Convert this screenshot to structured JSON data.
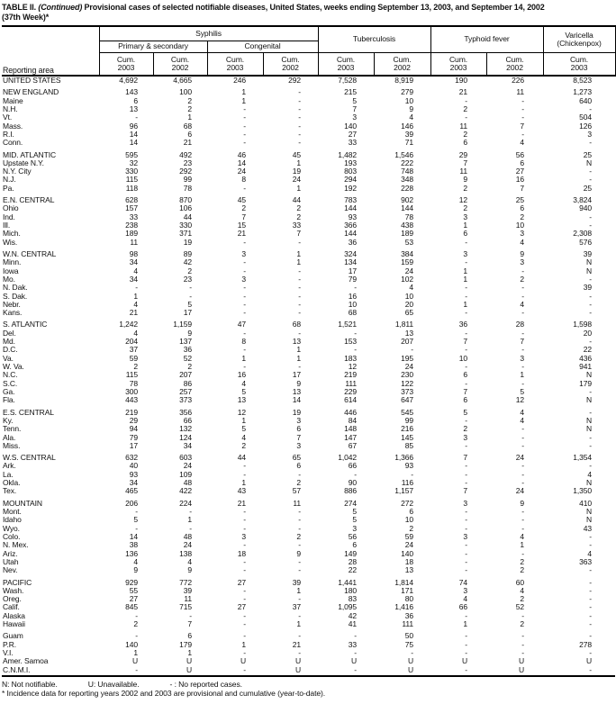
{
  "title": {
    "part1": "TABLE II. ",
    "continued": "(Continued)",
    "part2": " Provisional cases of selected notifiable diseases, United States, weeks ending September 13, 2003, and September 14, 2002",
    "line2": "(37th Week)*"
  },
  "header": {
    "reporting_area": "Reporting area",
    "syphilis": "Syphilis",
    "primary_secondary": "Primary & secondary",
    "congenital": "Congenital",
    "tuberculosis": "Tuberculosis",
    "typhoid": "Typhoid fever",
    "varicella_line1": "Varicella",
    "varicella_line2": "(Chickenpox)",
    "cum": "Cum.",
    "years": [
      "2003",
      "2002",
      "2003",
      "2002",
      "2003",
      "2002",
      "2003",
      "2002",
      "2003"
    ]
  },
  "table": {
    "rows": [
      {
        "type": "total",
        "area": "UNITED STATES",
        "v": [
          "4,692",
          "4,665",
          "246",
          "292",
          "7,528",
          "8,919",
          "190",
          "226",
          "8,523"
        ]
      },
      {
        "gap": true
      },
      {
        "type": "region",
        "area": "NEW ENGLAND",
        "v": [
          "143",
          "100",
          "1",
          "-",
          "215",
          "279",
          "21",
          "11",
          "1,273"
        ]
      },
      {
        "type": "state",
        "area": "Maine",
        "v": [
          "6",
          "2",
          "1",
          "-",
          "5",
          "10",
          "-",
          "-",
          "640"
        ]
      },
      {
        "type": "state",
        "area": "N.H.",
        "v": [
          "13",
          "2",
          "-",
          "-",
          "7",
          "9",
          "2",
          "-",
          "-"
        ]
      },
      {
        "type": "state",
        "area": "Vt.",
        "v": [
          "-",
          "1",
          "-",
          "-",
          "3",
          "4",
          "-",
          "-",
          "504"
        ]
      },
      {
        "type": "state",
        "area": "Mass.",
        "v": [
          "96",
          "68",
          "-",
          "-",
          "140",
          "146",
          "11",
          "7",
          "126"
        ]
      },
      {
        "type": "state",
        "area": "R.I.",
        "v": [
          "14",
          "6",
          "-",
          "-",
          "27",
          "39",
          "2",
          "-",
          "3"
        ]
      },
      {
        "type": "state",
        "area": "Conn.",
        "v": [
          "14",
          "21",
          "-",
          "-",
          "33",
          "71",
          "6",
          "4",
          "-"
        ]
      },
      {
        "gap": true
      },
      {
        "type": "region",
        "area": "MID. ATLANTIC",
        "v": [
          "595",
          "492",
          "46",
          "45",
          "1,482",
          "1,546",
          "29",
          "56",
          "25"
        ]
      },
      {
        "type": "state",
        "area": "Upstate N.Y.",
        "v": [
          "32",
          "23",
          "14",
          "1",
          "193",
          "222",
          "7",
          "6",
          "N"
        ]
      },
      {
        "type": "state",
        "area": "N.Y. City",
        "v": [
          "330",
          "292",
          "24",
          "19",
          "803",
          "748",
          "11",
          "27",
          "-"
        ]
      },
      {
        "type": "state",
        "area": "N.J.",
        "v": [
          "115",
          "99",
          "8",
          "24",
          "294",
          "348",
          "9",
          "16",
          "-"
        ]
      },
      {
        "type": "state",
        "area": "Pa.",
        "v": [
          "118",
          "78",
          "-",
          "1",
          "192",
          "228",
          "2",
          "7",
          "25"
        ]
      },
      {
        "gap": true
      },
      {
        "type": "region",
        "area": "E.N. CENTRAL",
        "v": [
          "628",
          "870",
          "45",
          "44",
          "783",
          "902",
          "12",
          "25",
          "3,824"
        ]
      },
      {
        "type": "state",
        "area": "Ohio",
        "v": [
          "157",
          "106",
          "2",
          "2",
          "144",
          "144",
          "2",
          "6",
          "940"
        ]
      },
      {
        "type": "state",
        "area": "Ind.",
        "v": [
          "33",
          "44",
          "7",
          "2",
          "93",
          "78",
          "3",
          "2",
          "-"
        ]
      },
      {
        "type": "state",
        "area": "Ill.",
        "v": [
          "238",
          "330",
          "15",
          "33",
          "366",
          "438",
          "1",
          "10",
          "-"
        ]
      },
      {
        "type": "state",
        "area": "Mich.",
        "v": [
          "189",
          "371",
          "21",
          "7",
          "144",
          "189",
          "6",
          "3",
          "2,308"
        ]
      },
      {
        "type": "state",
        "area": "Wis.",
        "v": [
          "11",
          "19",
          "-",
          "-",
          "36",
          "53",
          "-",
          "4",
          "576"
        ]
      },
      {
        "gap": true
      },
      {
        "type": "region",
        "area": "W.N. CENTRAL",
        "v": [
          "98",
          "89",
          "3",
          "1",
          "324",
          "384",
          "3",
          "9",
          "39"
        ]
      },
      {
        "type": "state",
        "area": "Minn.",
        "v": [
          "34",
          "42",
          "-",
          "1",
          "134",
          "159",
          "-",
          "3",
          "N"
        ]
      },
      {
        "type": "state",
        "area": "Iowa",
        "v": [
          "4",
          "2",
          "-",
          "-",
          "17",
          "24",
          "1",
          "-",
          "N"
        ]
      },
      {
        "type": "state",
        "area": "Mo.",
        "v": [
          "34",
          "23",
          "3",
          "-",
          "79",
          "102",
          "1",
          "2",
          "-"
        ]
      },
      {
        "type": "state",
        "area": "N. Dak.",
        "v": [
          "-",
          "-",
          "-",
          "-",
          "-",
          "4",
          "-",
          "-",
          "39"
        ]
      },
      {
        "type": "state",
        "area": "S. Dak.",
        "v": [
          "1",
          "-",
          "-",
          "-",
          "16",
          "10",
          "-",
          "-",
          "-"
        ]
      },
      {
        "type": "state",
        "area": "Nebr.",
        "v": [
          "4",
          "5",
          "-",
          "-",
          "10",
          "20",
          "1",
          "4",
          "-"
        ]
      },
      {
        "type": "state",
        "area": "Kans.",
        "v": [
          "21",
          "17",
          "-",
          "-",
          "68",
          "65",
          "-",
          "-",
          "-"
        ]
      },
      {
        "gap": true
      },
      {
        "type": "region",
        "area": "S. ATLANTIC",
        "v": [
          "1,242",
          "1,159",
          "47",
          "68",
          "1,521",
          "1,811",
          "36",
          "28",
          "1,598"
        ]
      },
      {
        "type": "state",
        "area": "Del.",
        "v": [
          "4",
          "9",
          "-",
          "-",
          "-",
          "13",
          "-",
          "-",
          "20"
        ]
      },
      {
        "type": "state",
        "area": "Md.",
        "v": [
          "204",
          "137",
          "8",
          "13",
          "153",
          "207",
          "7",
          "7",
          "-"
        ]
      },
      {
        "type": "state",
        "area": "D.C.",
        "v": [
          "37",
          "36",
          "-",
          "1",
          "-",
          "-",
          "-",
          "-",
          "22"
        ]
      },
      {
        "type": "state",
        "area": "Va.",
        "v": [
          "59",
          "52",
          "1",
          "1",
          "183",
          "195",
          "10",
          "3",
          "436"
        ]
      },
      {
        "type": "state",
        "area": "W. Va.",
        "v": [
          "2",
          "2",
          "-",
          "-",
          "12",
          "24",
          "-",
          "-",
          "941"
        ]
      },
      {
        "type": "state",
        "area": "N.C.",
        "v": [
          "115",
          "207",
          "16",
          "17",
          "219",
          "230",
          "6",
          "1",
          "N"
        ]
      },
      {
        "type": "state",
        "area": "S.C.",
        "v": [
          "78",
          "86",
          "4",
          "9",
          "111",
          "122",
          "-",
          "-",
          "179"
        ]
      },
      {
        "type": "state",
        "area": "Ga.",
        "v": [
          "300",
          "257",
          "5",
          "13",
          "229",
          "373",
          "7",
          "5",
          "-"
        ]
      },
      {
        "type": "state",
        "area": "Fla.",
        "v": [
          "443",
          "373",
          "13",
          "14",
          "614",
          "647",
          "6",
          "12",
          "N"
        ]
      },
      {
        "gap": true
      },
      {
        "type": "region",
        "area": "E.S. CENTRAL",
        "v": [
          "219",
          "356",
          "12",
          "19",
          "446",
          "545",
          "5",
          "4",
          "-"
        ]
      },
      {
        "type": "state",
        "area": "Ky.",
        "v": [
          "29",
          "66",
          "1",
          "3",
          "84",
          "99",
          "-",
          "4",
          "N"
        ]
      },
      {
        "type": "state",
        "area": "Tenn.",
        "v": [
          "94",
          "132",
          "5",
          "6",
          "148",
          "216",
          "2",
          "-",
          "N"
        ]
      },
      {
        "type": "state",
        "area": "Ala.",
        "v": [
          "79",
          "124",
          "4",
          "7",
          "147",
          "145",
          "3",
          "-",
          "-"
        ]
      },
      {
        "type": "state",
        "area": "Miss.",
        "v": [
          "17",
          "34",
          "2",
          "3",
          "67",
          "85",
          "-",
          "-",
          "-"
        ]
      },
      {
        "gap": true
      },
      {
        "type": "region",
        "area": "W.S. CENTRAL",
        "v": [
          "632",
          "603",
          "44",
          "65",
          "1,042",
          "1,366",
          "7",
          "24",
          "1,354"
        ]
      },
      {
        "type": "state",
        "area": "Ark.",
        "v": [
          "40",
          "24",
          "-",
          "6",
          "66",
          "93",
          "-",
          "-",
          "-"
        ]
      },
      {
        "type": "state",
        "area": "La.",
        "v": [
          "93",
          "109",
          "-",
          "-",
          "-",
          "-",
          "-",
          "-",
          "4"
        ]
      },
      {
        "type": "state",
        "area": "Okla.",
        "v": [
          "34",
          "48",
          "1",
          "2",
          "90",
          "116",
          "-",
          "-",
          "N"
        ]
      },
      {
        "type": "state",
        "area": "Tex.",
        "v": [
          "465",
          "422",
          "43",
          "57",
          "886",
          "1,157",
          "7",
          "24",
          "1,350"
        ]
      },
      {
        "gap": true
      },
      {
        "type": "region",
        "area": "MOUNTAIN",
        "v": [
          "206",
          "224",
          "21",
          "11",
          "274",
          "272",
          "3",
          "9",
          "410"
        ]
      },
      {
        "type": "state",
        "area": "Mont.",
        "v": [
          "-",
          "-",
          "-",
          "-",
          "5",
          "6",
          "-",
          "-",
          "N"
        ]
      },
      {
        "type": "state",
        "area": "Idaho",
        "v": [
          "5",
          "1",
          "-",
          "-",
          "5",
          "10",
          "-",
          "-",
          "N"
        ]
      },
      {
        "type": "state",
        "area": "Wyo.",
        "v": [
          "-",
          "-",
          "-",
          "-",
          "3",
          "2",
          "-",
          "-",
          "43"
        ]
      },
      {
        "type": "state",
        "area": "Colo.",
        "v": [
          "14",
          "48",
          "3",
          "2",
          "56",
          "59",
          "3",
          "4",
          "-"
        ]
      },
      {
        "type": "state",
        "area": "N. Mex.",
        "v": [
          "38",
          "24",
          "-",
          "-",
          "6",
          "24",
          "-",
          "1",
          "-"
        ]
      },
      {
        "type": "state",
        "area": "Ariz.",
        "v": [
          "136",
          "138",
          "18",
          "9",
          "149",
          "140",
          "-",
          "-",
          "4"
        ]
      },
      {
        "type": "state",
        "area": "Utah",
        "v": [
          "4",
          "4",
          "-",
          "-",
          "28",
          "18",
          "-",
          "2",
          "363"
        ]
      },
      {
        "type": "state",
        "area": "Nev.",
        "v": [
          "9",
          "9",
          "-",
          "-",
          "22",
          "13",
          "-",
          "2",
          "-"
        ]
      },
      {
        "gap": true
      },
      {
        "type": "region",
        "area": "PACIFIC",
        "v": [
          "929",
          "772",
          "27",
          "39",
          "1,441",
          "1,814",
          "74",
          "60",
          "-"
        ]
      },
      {
        "type": "state",
        "area": "Wash.",
        "v": [
          "55",
          "39",
          "-",
          "1",
          "180",
          "171",
          "3",
          "4",
          "-"
        ]
      },
      {
        "type": "state",
        "area": "Oreg.",
        "v": [
          "27",
          "11",
          "-",
          "-",
          "83",
          "80",
          "4",
          "2",
          "-"
        ]
      },
      {
        "type": "state",
        "area": "Calif.",
        "v": [
          "845",
          "715",
          "27",
          "37",
          "1,095",
          "1,416",
          "66",
          "52",
          "-"
        ]
      },
      {
        "type": "state",
        "area": "Alaska",
        "v": [
          "-",
          "-",
          "-",
          "-",
          "42",
          "36",
          "-",
          "-",
          "-"
        ]
      },
      {
        "type": "state",
        "area": "Hawaii",
        "v": [
          "2",
          "7",
          "-",
          "1",
          "41",
          "111",
          "1",
          "2",
          "-"
        ]
      },
      {
        "gap": true
      },
      {
        "type": "territory",
        "area": "Guam",
        "v": [
          "-",
          "6",
          "-",
          "-",
          "-",
          "50",
          "-",
          "-",
          "-"
        ]
      },
      {
        "type": "territory",
        "area": "P.R.",
        "v": [
          "140",
          "179",
          "1",
          "21",
          "33",
          "75",
          "-",
          "-",
          "278"
        ]
      },
      {
        "type": "territory",
        "area": "V.I.",
        "v": [
          "1",
          "1",
          "-",
          "-",
          "-",
          "-",
          "-",
          "-",
          "-"
        ]
      },
      {
        "type": "territory",
        "area": "Amer. Samoa",
        "v": [
          "U",
          "U",
          "U",
          "U",
          "U",
          "U",
          "U",
          "U",
          "U"
        ]
      },
      {
        "type": "territory",
        "area": "C.N.M.I.",
        "v": [
          "-",
          "U",
          "-",
          "U",
          "-",
          "U",
          "-",
          "U",
          "-"
        ]
      }
    ]
  },
  "footnotes": {
    "n": "N: Not notifiable.",
    "u": "U: Unavailable.",
    "dash": "- : No reported cases.",
    "star": "* Incidence data for reporting years 2002 and 2003 are provisional and cumulative (year-to-date)."
  }
}
